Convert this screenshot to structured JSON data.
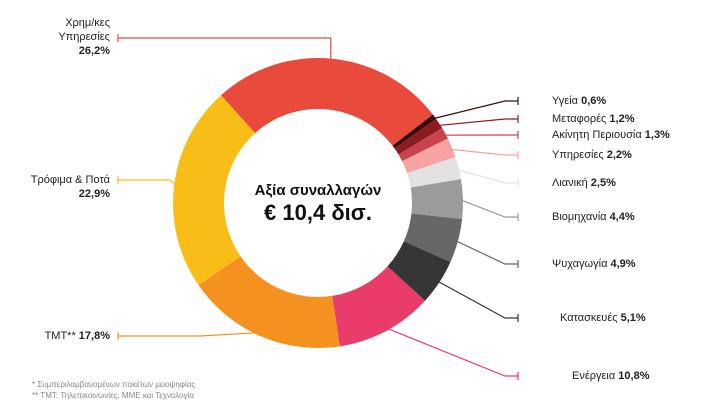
{
  "chart_data": {
    "type": "pie",
    "center_title": "Αξία συναλλαγών",
    "center_value": "€ 10,4 δισ.",
    "categories": [
      "Χρημ/κες Υπηρεσίες",
      "Υγεία",
      "Μεταφορές",
      "Ακίνητη Περιουσία",
      "Υπηρεσίες",
      "Λιανική",
      "Βιομηχανία",
      "Ψυχαγωγία",
      "Κατασκευές",
      "Ενέργεια",
      "TMT**",
      "Τρόφιμα & Ποτά"
    ],
    "values": [
      26.2,
      0.6,
      1.2,
      1.3,
      2.2,
      2.5,
      4.4,
      4.9,
      5.1,
      10.8,
      17.8,
      22.9
    ],
    "value_labels": [
      "26,2%",
      "0,6%",
      "1,2%",
      "1,3%",
      "2,2%",
      "2,5%",
      "4,4%",
      "4,9%",
      "5,1%",
      "10,8%",
      "17,8%",
      "22,9%"
    ],
    "colors": [
      "#e84b3c",
      "#3a0d0d",
      "#8c1c22",
      "#c8434d",
      "#f6a3a3",
      "#e2e2e2",
      "#9b9b9b",
      "#676767",
      "#363636",
      "#e93c6a",
      "#f5921f",
      "#f9bd17"
    ],
    "footnotes": [
      "* Συμπεριλαμβανομένων πακέτων μειοψηφίας",
      "** TMT: Τηλεπικοινωνίες, ΜΜΕ και Τεχνολογία"
    ]
  }
}
